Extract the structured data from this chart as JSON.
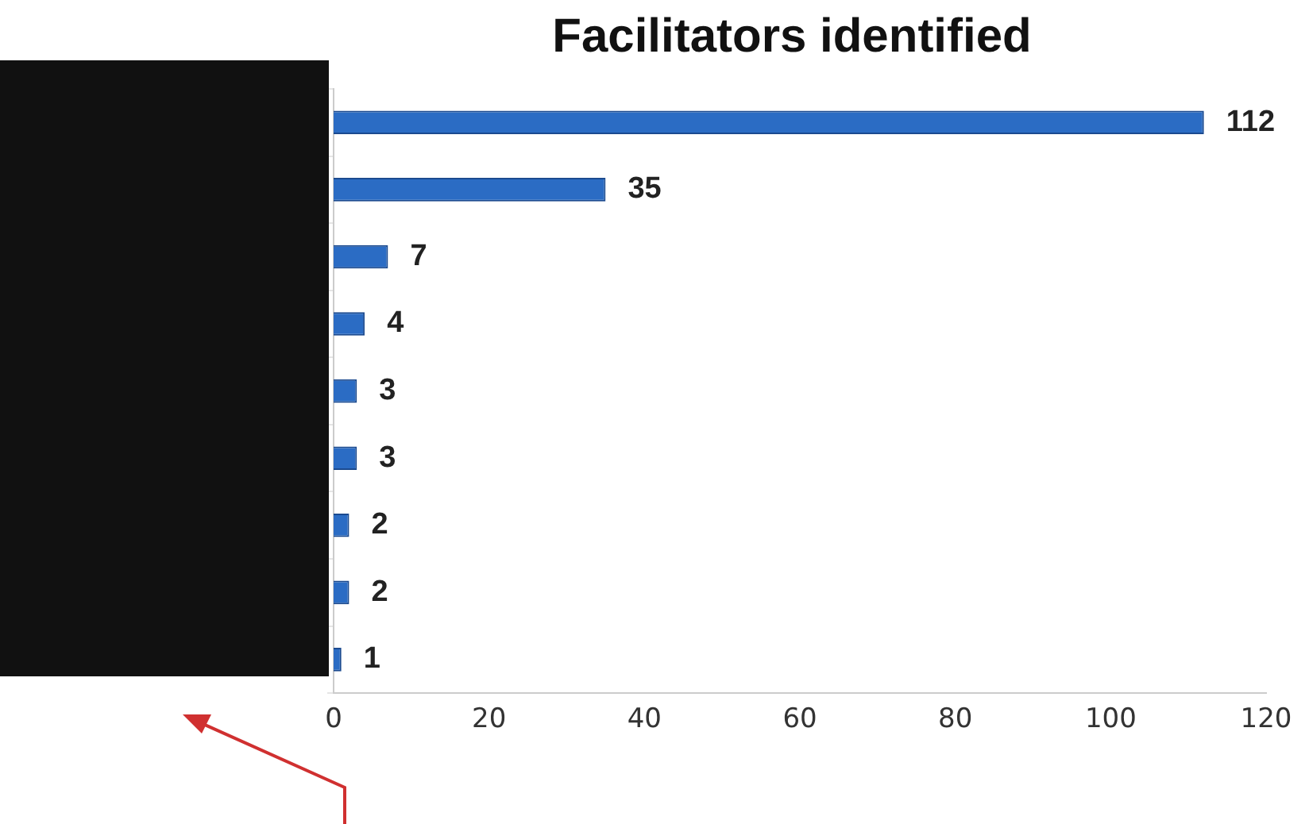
{
  "chart_data": {
    "type": "bar",
    "orientation": "horizontal",
    "title": "Facilitators identified",
    "categories": [
      null,
      null,
      null,
      null,
      null,
      null,
      null,
      null,
      null
    ],
    "values": [
      112,
      35,
      7,
      4,
      3,
      3,
      2,
      2,
      1
    ],
    "color": "#2b6cc4",
    "xlim": [
      0,
      120
    ],
    "xticks": [
      0,
      20,
      40,
      60,
      80,
      100,
      120
    ],
    "data_labels": true,
    "grid": false,
    "legend": false
  }
}
